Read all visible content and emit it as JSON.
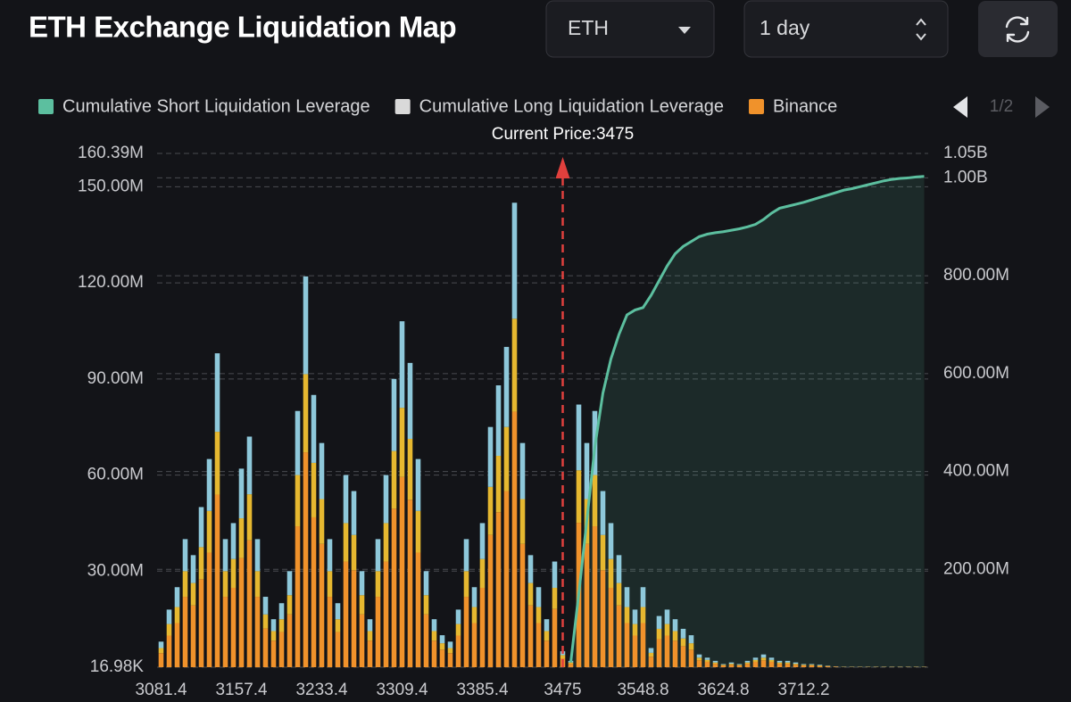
{
  "header": {
    "title": "ETH Exchange Liquidation Map",
    "asset": "ETH",
    "interval": "1 day"
  },
  "chart_data": {
    "type": "bar",
    "legend_page": "1/2",
    "current_price": 3475,
    "current_price_label": "Current Price:3475",
    "grid": true,
    "categories": [
      "3081.4",
      null,
      null,
      null,
      null,
      null,
      null,
      null,
      null,
      null,
      "3157.4",
      null,
      null,
      null,
      null,
      null,
      null,
      null,
      null,
      null,
      "3233.4",
      null,
      null,
      null,
      null,
      null,
      null,
      null,
      null,
      null,
      "3309.4",
      null,
      null,
      null,
      null,
      null,
      null,
      null,
      null,
      null,
      "3385.4",
      null,
      null,
      null,
      null,
      null,
      null,
      null,
      null,
      null,
      "3475",
      null,
      null,
      null,
      null,
      null,
      null,
      null,
      null,
      null,
      "3548.8",
      null,
      null,
      null,
      null,
      null,
      null,
      null,
      null,
      null,
      "3624.8",
      null,
      null,
      null,
      null,
      null,
      null,
      null,
      null,
      null,
      "3712.2",
      null,
      null,
      null,
      null,
      null,
      null,
      null,
      null,
      null,
      null,
      null,
      null,
      null,
      null,
      null
    ],
    "ylim": [
      16980,
      160390000
    ],
    "yticks": [
      {
        "value": 16980,
        "label": "16.98K"
      },
      {
        "value": 30000000,
        "label": "30.00M"
      },
      {
        "value": 60000000,
        "label": "60.00M"
      },
      {
        "value": 90000000,
        "label": "90.00M"
      },
      {
        "value": 120000000,
        "label": "120.00M"
      },
      {
        "value": 150000000,
        "label": "150.00M"
      },
      {
        "value": 160390000,
        "label": "160.39M"
      }
    ],
    "y2lim": [
      0,
      1050000000
    ],
    "y2ticks": [
      {
        "value": 200000000,
        "label": "200.00M"
      },
      {
        "value": 400000000,
        "label": "400.00M"
      },
      {
        "value": 600000000,
        "label": "600.00M"
      },
      {
        "value": 800000000,
        "label": "800.00M"
      },
      {
        "value": 1000000000,
        "label": "1.00B"
      },
      {
        "value": 1050000000,
        "label": "1.05B"
      }
    ],
    "series": [
      {
        "name": "Cumulative Short Liquidation Leverage",
        "color": "#5cbf9f",
        "axis": "y2",
        "values": [
          null,
          null,
          null,
          null,
          null,
          null,
          null,
          null,
          null,
          null,
          null,
          null,
          null,
          null,
          null,
          null,
          null,
          null,
          null,
          null,
          null,
          null,
          null,
          null,
          null,
          null,
          null,
          null,
          null,
          null,
          null,
          null,
          null,
          null,
          null,
          null,
          null,
          null,
          null,
          null,
          null,
          null,
          null,
          null,
          null,
          null,
          null,
          null,
          null,
          null,
          null,
          10000000.0,
          150000000.0,
          300000000.0,
          450000000.0,
          560000000.0,
          630000000.0,
          680000000.0,
          720000000.0,
          730000000.0,
          735000000.0,
          760000000.0,
          790000000.0,
          820000000.0,
          845000000.0,
          860000000.0,
          870000000.0,
          880000000.0,
          885000000.0,
          888000000.0,
          890000000.0,
          893000000.0,
          896000000.0,
          900000000.0,
          905000000.0,
          915000000.0,
          928000000.0,
          938000000.0,
          942000000.0,
          946000000.0,
          950000000.0,
          955000000.0,
          960000000.0,
          965000000.0,
          970000000.0,
          975000000.0,
          978000000.0,
          982000000.0,
          986000000.0,
          990000000.0,
          994000000.0,
          997000000.0,
          999000000.0,
          1000000000.0,
          1002000000.0,
          1003000000.0
        ]
      },
      {
        "name": "Cumulative Long Liquidation Leverage",
        "color": "#d9d9d9",
        "axis": "y2",
        "values": [
          null,
          null,
          null,
          null,
          null,
          null,
          null,
          null,
          null,
          null,
          null,
          null,
          null,
          null,
          null,
          null,
          null,
          null,
          null,
          null,
          null,
          null,
          null,
          null,
          null,
          null,
          null,
          null,
          null,
          null,
          null,
          null,
          null,
          null,
          null,
          null,
          null,
          null,
          null,
          null,
          null,
          null,
          null,
          null,
          null,
          null,
          null,
          null,
          null,
          null,
          null,
          null,
          null,
          null,
          null,
          null,
          null,
          null,
          null,
          null,
          null,
          null,
          null,
          null,
          null,
          null,
          null,
          null,
          null,
          null,
          null,
          null,
          null,
          null,
          null,
          null,
          null,
          null,
          null,
          null,
          null,
          null,
          null,
          null,
          null,
          null,
          null,
          null,
          null,
          null,
          null,
          null,
          null,
          null,
          null,
          null
        ]
      },
      {
        "name": "Binance",
        "color": "#f0922b",
        "values": [
          4400000.0,
          9900000.0,
          13800000.0,
          22000000.0,
          19300000.0,
          27500000.0,
          35800000.0,
          53900000.0,
          22000000.0,
          24800000.0,
          34100000.0,
          39600000.0,
          22000000.0,
          12100000.0,
          8300000.0,
          11000000.0,
          16500000.0,
          44000000.0,
          67100000.0,
          46800000.0,
          38500000.0,
          22000000.0,
          11000000.0,
          33000000.0,
          30300000.0,
          16500000.0,
          8300000.0,
          22000000.0,
          33000000.0,
          49500000.0,
          59400000.0,
          52300000.0,
          35800000.0,
          16500000.0,
          8300000.0,
          5500000.0,
          4400000.0,
          9900000.0,
          22000000.0,
          13800000.0,
          24800000.0,
          41300000.0,
          48400000.0,
          55000000.0,
          79800000.0,
          38500000.0,
          19300000.0,
          13800000.0,
          8300000.0,
          18200000.0,
          2800000.0,
          1100000.0,
          45100000.0,
          38500000.0,
          44000000.0,
          30300000.0,
          24800000.0,
          19300000.0,
          13800000.0,
          9900000.0,
          13800000.0,
          3300000.0,
          8800000.0,
          9900000.0,
          8300000.0,
          6600000.0,
          5500000.0,
          2200000.0,
          1700000.0,
          1100000.0,
          600000.0,
          800000.0,
          600000.0,
          1100000.0,
          1700000.0,
          2200000.0,
          1700000.0,
          1100000.0,
          1100000.0,
          800000.0,
          600000.0,
          600000.0,
          400000.0,
          300000.0,
          200000.0,
          100000.0,
          100000.0,
          100000.0,
          100000.0,
          100000.0,
          100000.0,
          100000.0,
          100000.0,
          100000.0,
          100000.0,
          100000.0
        ]
      },
      {
        "color": "#e6b830",
        "values": [
          1600000.0,
          3600000.0,
          5000000.0,
          8000000.0,
          7000000.0,
          10000000.0,
          13000000.0,
          19600000.0,
          8000000.0,
          9000000.0,
          12400000.0,
          14400000.0,
          8000000.0,
          4400000.0,
          3000000.0,
          4000000.0,
          6000000.0,
          16000000.0,
          24400000.0,
          17000000.0,
          14000000.0,
          8000000.0,
          4000000.0,
          12000000.0,
          11000000.0,
          6000000.0,
          3000000.0,
          8000000.0,
          12000000.0,
          18000000.0,
          21600000.0,
          19000000.0,
          13000000.0,
          6000000.0,
          3000000.0,
          2000000.0,
          1600000.0,
          3600000.0,
          8000000.0,
          5000000.0,
          9000000.0,
          15000000.0,
          17600000.0,
          20000000.0,
          29000000.0,
          14000000.0,
          7000000.0,
          5000000.0,
          3000000.0,
          6600000.0,
          1000000.0,
          400000.0,
          16400000.0,
          14000000.0,
          16000000.0,
          11000000.0,
          9000000.0,
          7000000.0,
          5000000.0,
          3600000.0,
          5000000.0,
          1200000.0,
          3200000.0,
          3600000.0,
          3000000.0,
          2400000.0,
          2000000.0,
          800000.0,
          600000.0,
          400000.0,
          200000.0,
          300000.0,
          200000.0,
          400000.0,
          600000.0,
          800000.0,
          600000.0,
          400000.0,
          400000.0,
          300000.0,
          200000.0,
          200000.0,
          200000.0,
          100000.0,
          50000.0,
          50000.0,
          50000.0,
          50000.0,
          50000.0,
          50000.0,
          50000.0,
          50000.0,
          50000.0,
          50000.0,
          50000.0,
          50000.0
        ]
      },
      {
        "color": "#8ec8da",
        "values": [
          2000000.0,
          4500000.0,
          6200000.0,
          10000000.0,
          8700000.0,
          12500000.0,
          16200000.0,
          24500000.0,
          10000000.0,
          11200000.0,
          15500000.0,
          18000000.0,
          10000000.0,
          5500000.0,
          3700000.0,
          5000000.0,
          7500000.0,
          20000000.0,
          30500000.0,
          21200000.0,
          17500000.0,
          10000000.0,
          5000000.0,
          15000000.0,
          13700000.0,
          7500000.0,
          3700000.0,
          10000000.0,
          15000000.0,
          22500000.0,
          27000000.0,
          23700000.0,
          16200000.0,
          7500000.0,
          3700000.0,
          2500000.0,
          2000000.0,
          4500000.0,
          10000000.0,
          6200000.0,
          11200000.0,
          18700000.0,
          22000000.0,
          25000000.0,
          36200000.0,
          17500000.0,
          8700000.0,
          6200000.0,
          3700000.0,
          8200000.0,
          1200000.0,
          500000.0,
          20500000.0,
          17500000.0,
          20000000.0,
          13700000.0,
          11200000.0,
          8700000.0,
          6200000.0,
          4500000.0,
          6200000.0,
          1500000.0,
          4000000.0,
          4500000.0,
          3700000.0,
          3000000.0,
          2500000.0,
          1000000.0,
          700000.0,
          500000.0,
          200000.0,
          400000.0,
          200000.0,
          500000.0,
          700000.0,
          1000000.0,
          700000.0,
          500000.0,
          500000.0,
          400000.0,
          200000.0,
          200000.0,
          200000.0,
          100000.0,
          50000.0,
          50000.0,
          50000.0,
          50000.0,
          50000.0,
          50000.0,
          50000.0,
          50000.0,
          50000.0,
          50000.0,
          50000.0,
          50000.0
        ]
      }
    ]
  }
}
